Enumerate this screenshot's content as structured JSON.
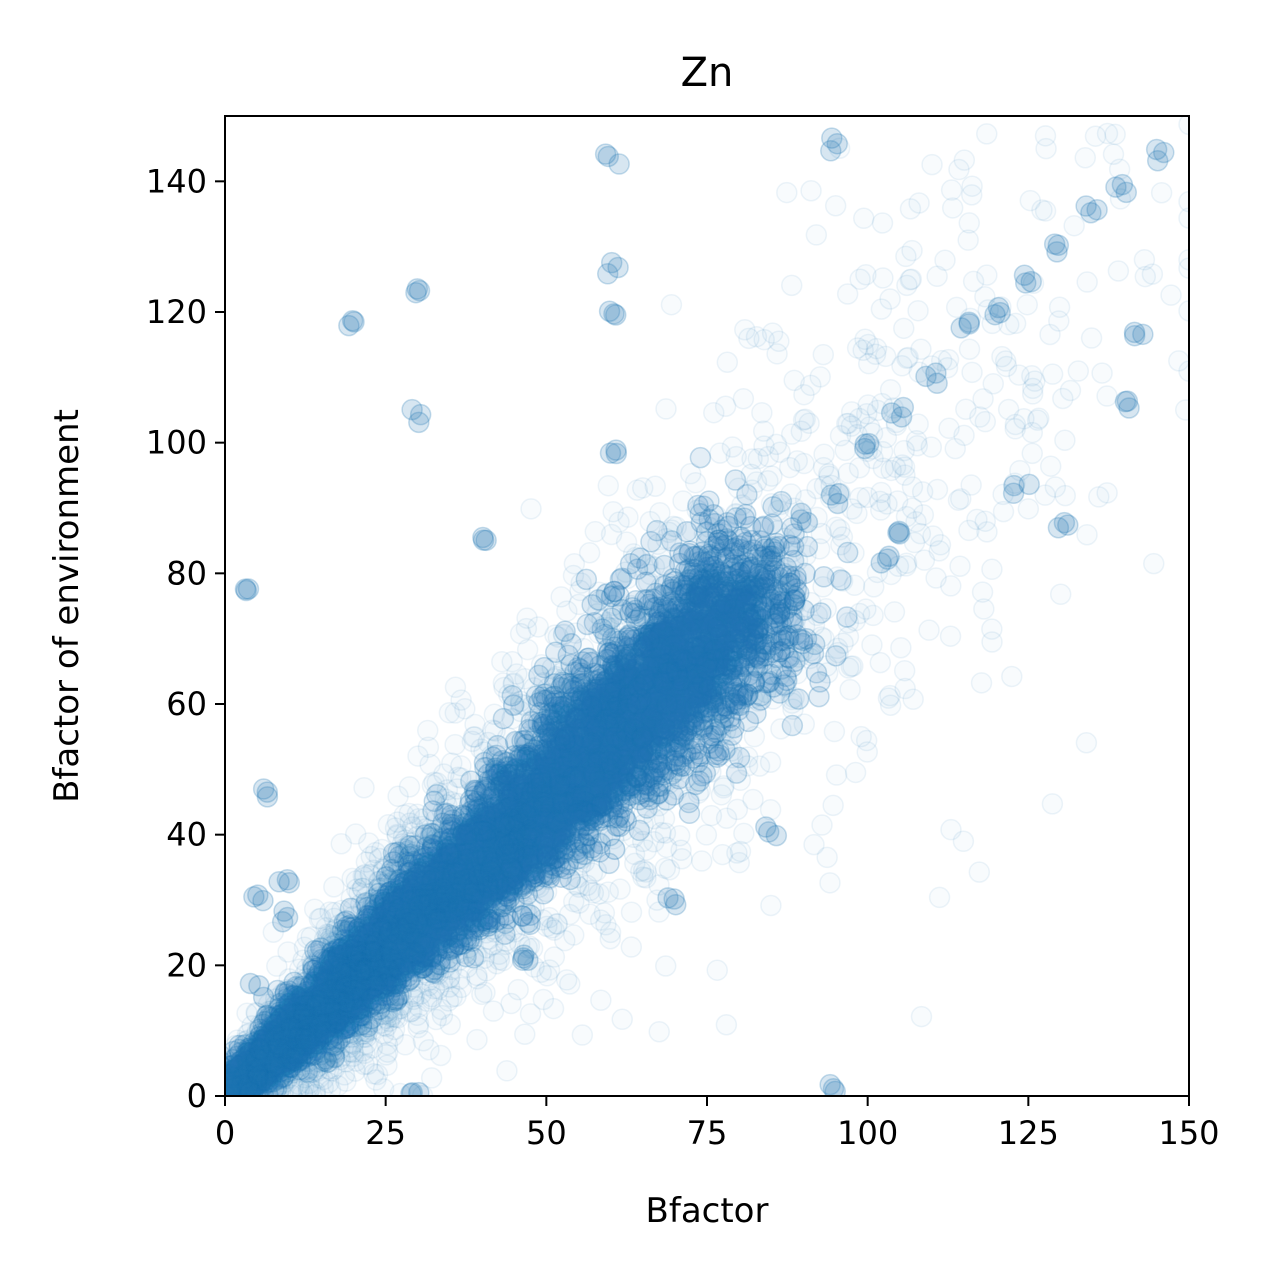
{
  "chart_data": {
    "type": "scatter",
    "title": "Zn",
    "xlabel": "Bfactor",
    "ylabel": "Bfactor of environment",
    "xlim": [
      0,
      150
    ],
    "ylim": [
      0,
      150
    ],
    "xticks": [
      0,
      25,
      50,
      75,
      100,
      125,
      150
    ],
    "yticks": [
      0,
      20,
      40,
      60,
      80,
      100,
      120,
      140
    ],
    "grid": false,
    "legend": "none",
    "point_color": "#1f77b4",
    "point_alpha": 0.03,
    "trend": "dense cloud along y ≈ x, core from (0,0) to about (80,80), spreading wider at higher Bfactor",
    "series": [
      {
        "values": [
          [
            2,
            2
          ],
          [
            5,
            4
          ],
          [
            8,
            7
          ],
          [
            10,
            9
          ],
          [
            12,
            11
          ],
          [
            15,
            13
          ],
          [
            18,
            16
          ],
          [
            20,
            18
          ],
          [
            22,
            20
          ],
          [
            25,
            22
          ],
          [
            28,
            25
          ],
          [
            30,
            27
          ],
          [
            33,
            30
          ],
          [
            35,
            31
          ],
          [
            38,
            34
          ],
          [
            40,
            36
          ],
          [
            43,
            38
          ],
          [
            45,
            40
          ],
          [
            48,
            43
          ],
          [
            50,
            45
          ],
          [
            53,
            48
          ],
          [
            55,
            50
          ],
          [
            58,
            53
          ],
          [
            60,
            55
          ],
          [
            63,
            58
          ],
          [
            65,
            60
          ],
          [
            68,
            63
          ],
          [
            70,
            65
          ],
          [
            73,
            68
          ],
          [
            75,
            70
          ],
          [
            78,
            74
          ],
          [
            80,
            77
          ],
          [
            85,
            82
          ],
          [
            90,
            88
          ],
          [
            95,
            92
          ],
          [
            100,
            100
          ],
          [
            105,
            105
          ],
          [
            110,
            110
          ],
          [
            115,
            118
          ],
          [
            120,
            120
          ],
          [
            125,
            125
          ],
          [
            130,
            130
          ],
          [
            135,
            135
          ],
          [
            140,
            139
          ],
          [
            145,
            144
          ],
          [
            7,
            46
          ],
          [
            5,
            31
          ],
          [
            9,
            28
          ],
          [
            9,
            33
          ],
          [
            30,
            104
          ],
          [
            30,
            1
          ],
          [
            95,
            1
          ],
          [
            60,
            120
          ],
          [
            60,
            127
          ],
          [
            60,
            98
          ],
          [
            3,
            77
          ],
          [
            103,
            82
          ],
          [
            105,
            86
          ],
          [
            130,
            88
          ],
          [
            141,
            106
          ],
          [
            141,
            116
          ],
          [
            124,
            93
          ],
          [
            16,
            6
          ],
          [
            47,
            21
          ],
          [
            5,
            16
          ],
          [
            20,
            118
          ],
          [
            30,
            123
          ],
          [
            60,
            144
          ],
          [
            95,
            146
          ],
          [
            40,
            85
          ],
          [
            70,
            30
          ],
          [
            85,
            40
          ]
        ]
      }
    ]
  }
}
